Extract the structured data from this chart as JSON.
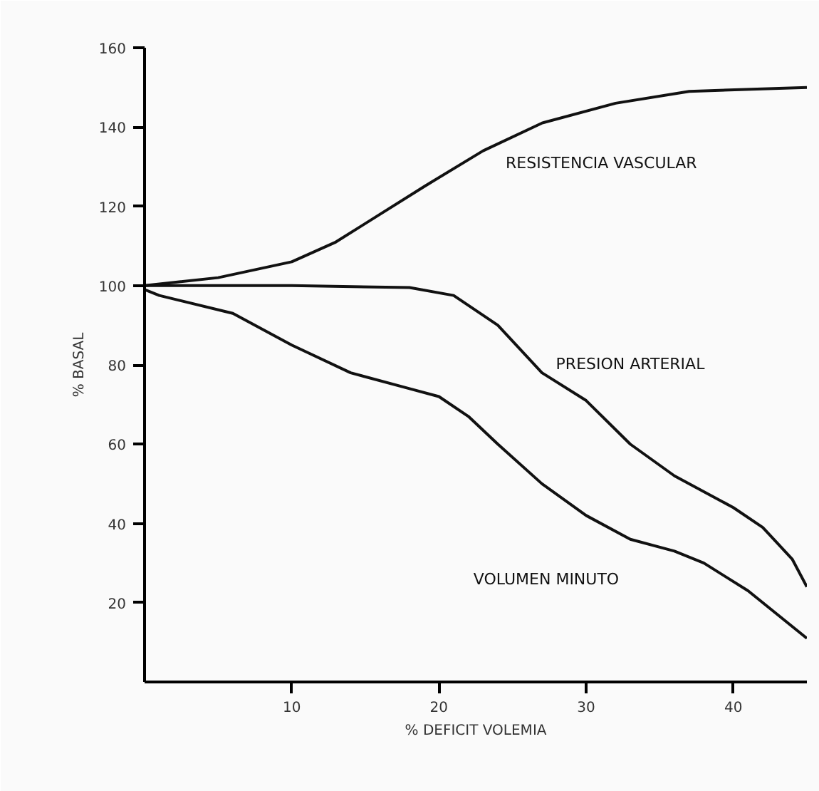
{
  "chart_data": {
    "type": "line",
    "xlabel": "% DEFICIT VOLEMIA",
    "ylabel": "% BASAL",
    "xlim": [
      0,
      45
    ],
    "ylim": [
      0,
      160
    ],
    "xticks": [
      10,
      20,
      30,
      40
    ],
    "yticks": [
      20,
      40,
      60,
      80,
      100,
      120,
      140,
      160
    ],
    "grid": false,
    "legend": false,
    "series": [
      {
        "name": "RESISTENCIA VASCULAR",
        "color": "#111111",
        "x": [
          0,
          5,
          10,
          13,
          16,
          19,
          23,
          27,
          32,
          37,
          45
        ],
        "values": [
          100,
          102,
          106,
          111,
          118,
          125,
          134,
          141,
          146,
          149,
          150
        ]
      },
      {
        "name": "PRESION ARTERIAL",
        "color": "#111111",
        "x": [
          0,
          10,
          18,
          21,
          24,
          27,
          30,
          33,
          36,
          40,
          42,
          44,
          45
        ],
        "values": [
          100,
          100,
          99.5,
          97.5,
          90,
          78,
          71,
          60,
          52,
          44,
          39,
          31,
          24
        ]
      },
      {
        "name": "VOLUMEN MINUTO",
        "color": "#111111",
        "x": [
          0,
          1,
          6,
          10,
          14,
          18,
          20,
          22,
          24,
          27,
          30,
          33,
          36,
          38,
          41,
          45
        ],
        "values": [
          99,
          97.5,
          93,
          85,
          78,
          74,
          72,
          67,
          60,
          50,
          42,
          36,
          33,
          30,
          23,
          11
        ]
      }
    ]
  }
}
